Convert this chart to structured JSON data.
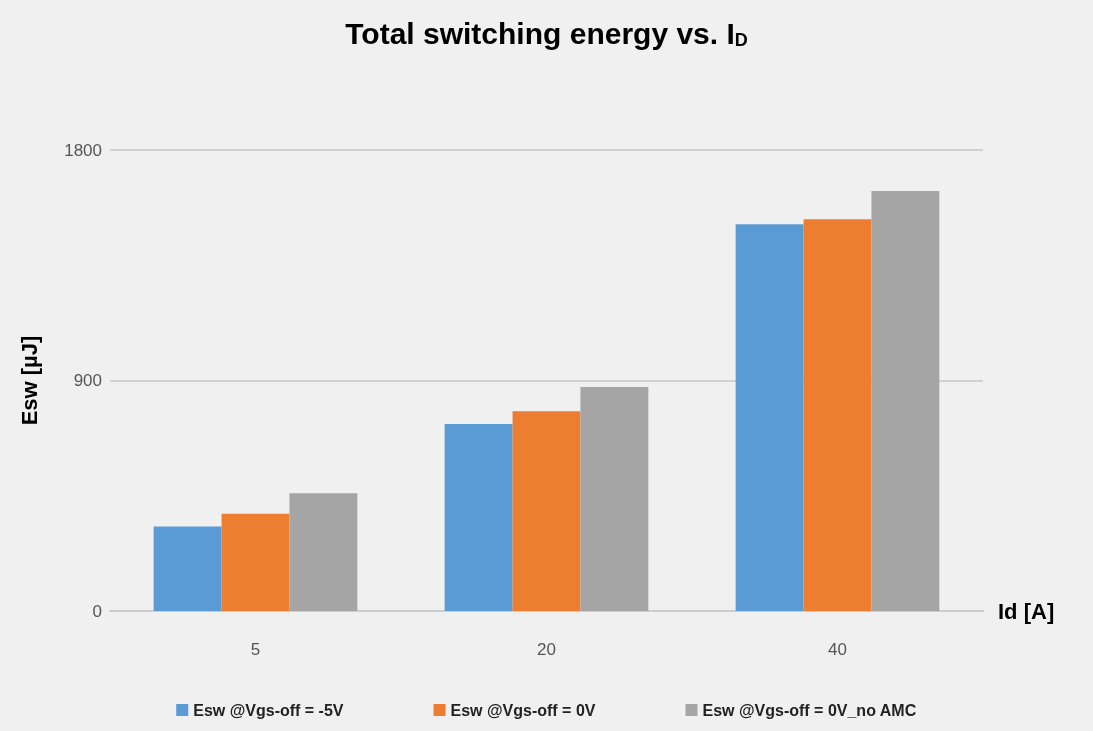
{
  "chart_data": {
    "type": "bar",
    "title": "Total switching energy vs. I$_{D}$",
    "xlabel": "Id [A]",
    "ylabel": "Esw [µJ]",
    "categories": [
      "5",
      "20",
      "40"
    ],
    "series": [
      {
        "name": "Esw @Vgs-off = -5V",
        "color": "#5b9bd5",
        "values": [
          330,
          730,
          1510
        ]
      },
      {
        "name": "Esw @Vgs-off = 0V",
        "color": "#ed7d31",
        "values": [
          380,
          780,
          1530
        ]
      },
      {
        "name": "Esw @Vgs-off = 0V_no AMC",
        "color": "#a5a5a5",
        "values": [
          460,
          875,
          1640
        ]
      }
    ],
    "ylim": [
      0,
      1800
    ],
    "yticks": [
      0,
      900,
      1800
    ],
    "grid": "y",
    "legend": "bottom"
  }
}
